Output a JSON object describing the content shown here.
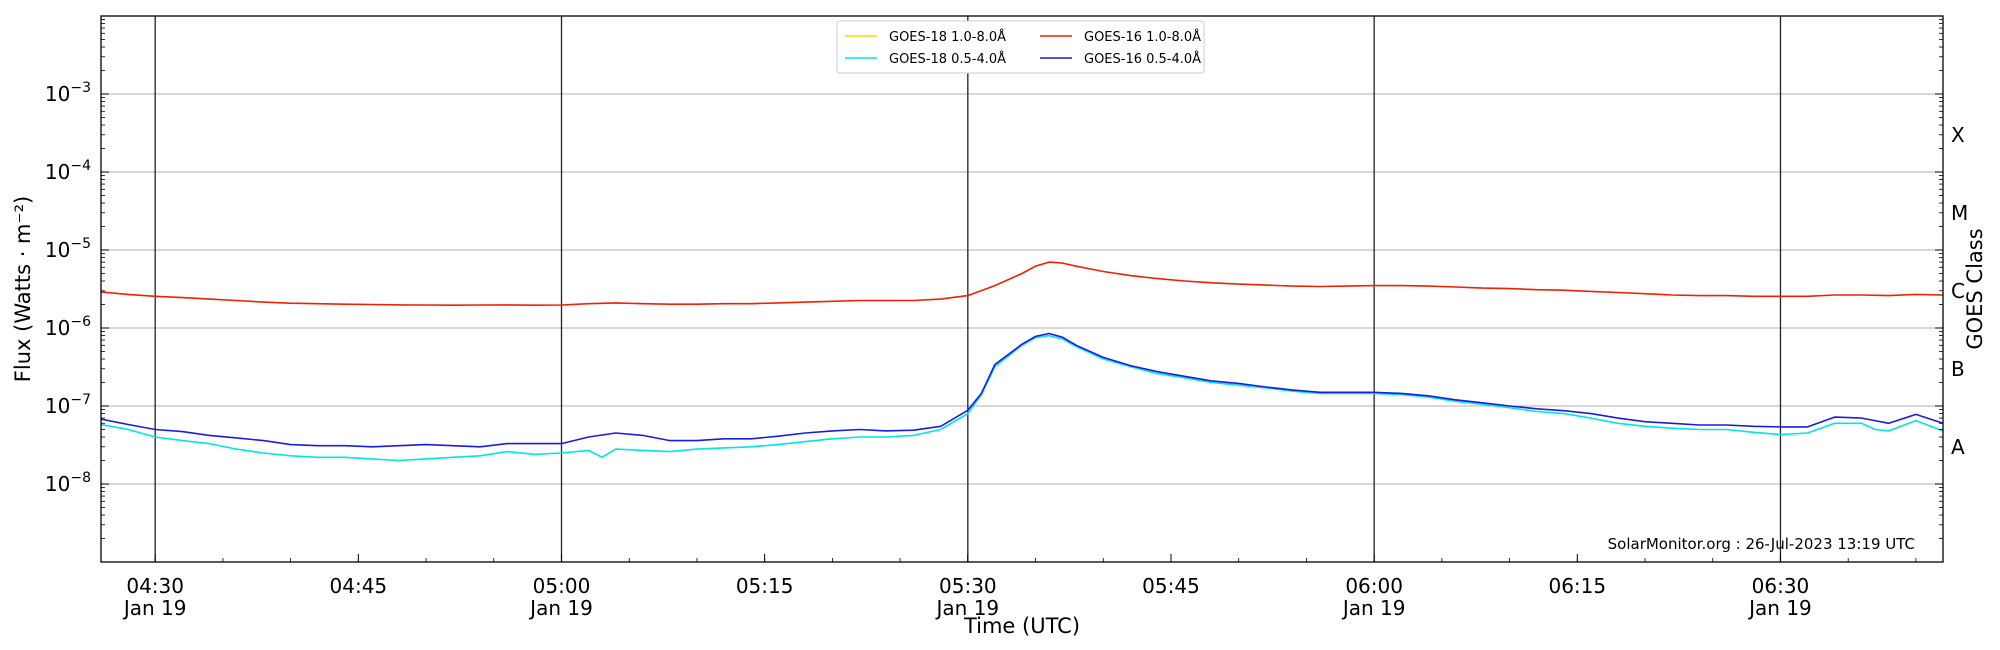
{
  "chart_data": {
    "type": "line",
    "xlabel": "Time (UTC)",
    "ylabel": "Flux (Watts · m⁻²)",
    "right_axis_label": "GOES Class",
    "y_scale": "log",
    "xlim": [
      "04:26",
      "06:42"
    ],
    "ylim": [
      1e-09,
      0.01
    ],
    "grid": "horizontal at decades",
    "legend_position": "top-center",
    "x_ticks": [
      {
        "t": "04:30",
        "line1": "04:30",
        "line2": "Jan 19",
        "major": true
      },
      {
        "t": "04:45",
        "line1": "04:45",
        "line2": "",
        "major": false
      },
      {
        "t": "05:00",
        "line1": "05:00",
        "line2": "Jan 19",
        "major": true
      },
      {
        "t": "05:15",
        "line1": "05:15",
        "line2": "",
        "major": false
      },
      {
        "t": "05:30",
        "line1": "05:30",
        "line2": "Jan 19",
        "major": true
      },
      {
        "t": "05:45",
        "line1": "05:45",
        "line2": "",
        "major": false
      },
      {
        "t": "06:00",
        "line1": "06:00",
        "line2": "Jan 19",
        "major": true
      },
      {
        "t": "06:15",
        "line1": "06:15",
        "line2": "",
        "major": false
      },
      {
        "t": "06:30",
        "line1": "06:30",
        "line2": "Jan 19",
        "major": true
      }
    ],
    "y_ticks": [
      {
        "value": 1e-08,
        "base": "10",
        "exp": "−8"
      },
      {
        "value": 1e-07,
        "base": "10",
        "exp": "−7"
      },
      {
        "value": 1e-06,
        "base": "10",
        "exp": "−6"
      },
      {
        "value": 1e-05,
        "base": "10",
        "exp": "−5"
      },
      {
        "value": 0.0001,
        "base": "10",
        "exp": "−4"
      },
      {
        "value": 0.001,
        "base": "10",
        "exp": "−3"
      }
    ],
    "goes_classes": [
      {
        "label": "X",
        "value": 0.0003
      },
      {
        "label": "M",
        "value": 3e-05
      },
      {
        "label": "C",
        "value": 3e-06
      },
      {
        "label": "B",
        "value": 3e-07
      },
      {
        "label": "A",
        "value": 3e-08
      }
    ],
    "series": [
      {
        "name": "GOES-18 1.0-8.0Å",
        "color": "#ffd700",
        "points": []
      },
      {
        "name": "GOES-18 0.5-4.0Å",
        "color": "#00e5e5",
        "points": [
          [
            "04:26",
            5.8e-08
          ],
          [
            "04:28",
            5e-08
          ],
          [
            "04:30",
            4e-08
          ],
          [
            "04:32",
            3.6e-08
          ],
          [
            "04:34",
            3.3e-08
          ],
          [
            "04:36",
            2.8e-08
          ],
          [
            "04:38",
            2.5e-08
          ],
          [
            "04:40",
            2.3e-08
          ],
          [
            "04:42",
            2.2e-08
          ],
          [
            "04:44",
            2.2e-08
          ],
          [
            "04:46",
            2.1e-08
          ],
          [
            "04:48",
            2e-08
          ],
          [
            "04:50",
            2.1e-08
          ],
          [
            "04:52",
            2.2e-08
          ],
          [
            "04:54",
            2.3e-08
          ],
          [
            "04:56",
            2.6e-08
          ],
          [
            "04:58",
            2.4e-08
          ],
          [
            "05:00",
            2.5e-08
          ],
          [
            "05:02",
            2.7e-08
          ],
          [
            "05:03",
            2.2e-08
          ],
          [
            "05:04",
            2.8e-08
          ],
          [
            "05:06",
            2.7e-08
          ],
          [
            "05:08",
            2.6e-08
          ],
          [
            "05:10",
            2.8e-08
          ],
          [
            "05:12",
            2.9e-08
          ],
          [
            "05:14",
            3e-08
          ],
          [
            "05:16",
            3.2e-08
          ],
          [
            "05:18",
            3.5e-08
          ],
          [
            "05:20",
            3.8e-08
          ],
          [
            "05:22",
            4e-08
          ],
          [
            "05:24",
            4e-08
          ],
          [
            "05:26",
            4.2e-08
          ],
          [
            "05:28",
            5e-08
          ],
          [
            "05:30",
            8e-08
          ],
          [
            "05:31",
            1.4e-07
          ],
          [
            "05:32",
            3.2e-07
          ],
          [
            "05:34",
            6e-07
          ],
          [
            "05:35",
            7.5e-07
          ],
          [
            "05:36",
            8e-07
          ],
          [
            "05:37",
            7.2e-07
          ],
          [
            "05:38",
            5.8e-07
          ],
          [
            "05:40",
            4e-07
          ],
          [
            "05:42",
            3.2e-07
          ],
          [
            "05:44",
            2.6e-07
          ],
          [
            "05:46",
            2.3e-07
          ],
          [
            "05:48",
            2e-07
          ],
          [
            "05:50",
            1.85e-07
          ],
          [
            "05:52",
            1.7e-07
          ],
          [
            "05:54",
            1.55e-07
          ],
          [
            "05:56",
            1.45e-07
          ],
          [
            "05:58",
            1.45e-07
          ],
          [
            "06:00",
            1.45e-07
          ],
          [
            "06:02",
            1.4e-07
          ],
          [
            "06:04",
            1.3e-07
          ],
          [
            "06:06",
            1.15e-07
          ],
          [
            "06:08",
            1.05e-07
          ],
          [
            "06:10",
            9.5e-08
          ],
          [
            "06:12",
            8.5e-08
          ],
          [
            "06:14",
            8e-08
          ],
          [
            "06:16",
            7e-08
          ],
          [
            "06:18",
            6e-08
          ],
          [
            "06:20",
            5.5e-08
          ],
          [
            "06:22",
            5.2e-08
          ],
          [
            "06:24",
            5e-08
          ],
          [
            "06:26",
            5e-08
          ],
          [
            "06:28",
            4.6e-08
          ],
          [
            "06:30",
            4.3e-08
          ],
          [
            "06:32",
            4.5e-08
          ],
          [
            "06:34",
            6e-08
          ],
          [
            "06:36",
            6e-08
          ],
          [
            "06:37",
            5e-08
          ],
          [
            "06:38",
            4.8e-08
          ],
          [
            "06:40",
            6.5e-08
          ],
          [
            "06:42",
            4.8e-08
          ]
        ]
      },
      {
        "name": "GOES-16 1.0-8.0Å",
        "color": "#ee2200",
        "points": [
          [
            "04:26",
            2.9e-06
          ],
          [
            "04:28",
            2.7e-06
          ],
          [
            "04:30",
            2.55e-06
          ],
          [
            "04:32",
            2.45e-06
          ],
          [
            "04:34",
            2.35e-06
          ],
          [
            "04:36",
            2.25e-06
          ],
          [
            "04:38",
            2.15e-06
          ],
          [
            "04:40",
            2.08e-06
          ],
          [
            "04:42",
            2.05e-06
          ],
          [
            "04:44",
            2.02e-06
          ],
          [
            "04:46",
            2e-06
          ],
          [
            "04:48",
            1.98e-06
          ],
          [
            "04:50",
            1.97e-06
          ],
          [
            "04:52",
            1.96e-06
          ],
          [
            "04:54",
            1.97e-06
          ],
          [
            "04:56",
            1.98e-06
          ],
          [
            "04:58",
            1.96e-06
          ],
          [
            "05:00",
            1.97e-06
          ],
          [
            "05:02",
            2.05e-06
          ],
          [
            "05:04",
            2.1e-06
          ],
          [
            "05:06",
            2.05e-06
          ],
          [
            "05:08",
            2.02e-06
          ],
          [
            "05:10",
            2.02e-06
          ],
          [
            "05:12",
            2.05e-06
          ],
          [
            "05:14",
            2.05e-06
          ],
          [
            "05:16",
            2.1e-06
          ],
          [
            "05:18",
            2.15e-06
          ],
          [
            "05:20",
            2.2e-06
          ],
          [
            "05:22",
            2.25e-06
          ],
          [
            "05:24",
            2.25e-06
          ],
          [
            "05:26",
            2.25e-06
          ],
          [
            "05:28",
            2.35e-06
          ],
          [
            "05:30",
            2.6e-06
          ],
          [
            "05:32",
            3.5e-06
          ],
          [
            "05:34",
            5e-06
          ],
          [
            "05:35",
            6.2e-06
          ],
          [
            "05:36",
            7e-06
          ],
          [
            "05:37",
            6.8e-06
          ],
          [
            "05:38",
            6.2e-06
          ],
          [
            "05:40",
            5.3e-06
          ],
          [
            "05:42",
            4.7e-06
          ],
          [
            "05:44",
            4.3e-06
          ],
          [
            "05:46",
            4e-06
          ],
          [
            "05:48",
            3.8e-06
          ],
          [
            "05:50",
            3.65e-06
          ],
          [
            "05:52",
            3.55e-06
          ],
          [
            "05:54",
            3.45e-06
          ],
          [
            "05:56",
            3.4e-06
          ],
          [
            "05:58",
            3.45e-06
          ],
          [
            "06:00",
            3.5e-06
          ],
          [
            "06:02",
            3.5e-06
          ],
          [
            "06:04",
            3.45e-06
          ],
          [
            "06:06",
            3.35e-06
          ],
          [
            "06:08",
            3.25e-06
          ],
          [
            "06:10",
            3.2e-06
          ],
          [
            "06:12",
            3.1e-06
          ],
          [
            "06:14",
            3.05e-06
          ],
          [
            "06:16",
            2.95e-06
          ],
          [
            "06:18",
            2.85e-06
          ],
          [
            "06:20",
            2.75e-06
          ],
          [
            "06:22",
            2.65e-06
          ],
          [
            "06:24",
            2.6e-06
          ],
          [
            "06:26",
            2.6e-06
          ],
          [
            "06:28",
            2.55e-06
          ],
          [
            "06:30",
            2.55e-06
          ],
          [
            "06:32",
            2.55e-06
          ],
          [
            "06:34",
            2.65e-06
          ],
          [
            "06:36",
            2.65e-06
          ],
          [
            "06:38",
            2.6e-06
          ],
          [
            "06:40",
            2.7e-06
          ],
          [
            "06:42",
            2.65e-06
          ]
        ]
      },
      {
        "name": "GOES-16 0.5-4.0Å",
        "color": "#1c1ce0",
        "points": [
          [
            "04:26",
            6.8e-08
          ],
          [
            "04:28",
            5.8e-08
          ],
          [
            "04:30",
            5e-08
          ],
          [
            "04:32",
            4.7e-08
          ],
          [
            "04:34",
            4.2e-08
          ],
          [
            "04:36",
            3.9e-08
          ],
          [
            "04:38",
            3.6e-08
          ],
          [
            "04:40",
            3.2e-08
          ],
          [
            "04:42",
            3.1e-08
          ],
          [
            "04:44",
            3.1e-08
          ],
          [
            "04:46",
            3e-08
          ],
          [
            "04:48",
            3.1e-08
          ],
          [
            "04:50",
            3.2e-08
          ],
          [
            "04:52",
            3.1e-08
          ],
          [
            "04:54",
            3e-08
          ],
          [
            "04:56",
            3.3e-08
          ],
          [
            "04:58",
            3.3e-08
          ],
          [
            "05:00",
            3.3e-08
          ],
          [
            "05:02",
            4e-08
          ],
          [
            "05:04",
            4.5e-08
          ],
          [
            "05:06",
            4.2e-08
          ],
          [
            "05:08",
            3.6e-08
          ],
          [
            "05:10",
            3.6e-08
          ],
          [
            "05:12",
            3.8e-08
          ],
          [
            "05:14",
            3.8e-08
          ],
          [
            "05:16",
            4.1e-08
          ],
          [
            "05:18",
            4.5e-08
          ],
          [
            "05:20",
            4.8e-08
          ],
          [
            "05:22",
            5e-08
          ],
          [
            "05:24",
            4.8e-08
          ],
          [
            "05:26",
            4.9e-08
          ],
          [
            "05:28",
            5.5e-08
          ],
          [
            "05:30",
            8.8e-08
          ],
          [
            "05:31",
            1.45e-07
          ],
          [
            "05:32",
            3.4e-07
          ],
          [
            "05:34",
            6.2e-07
          ],
          [
            "05:35",
            7.8e-07
          ],
          [
            "05:36",
            8.5e-07
          ],
          [
            "05:37",
            7.6e-07
          ],
          [
            "05:38",
            6e-07
          ],
          [
            "05:40",
            4.2e-07
          ],
          [
            "05:42",
            3.3e-07
          ],
          [
            "05:44",
            2.75e-07
          ],
          [
            "05:46",
            2.4e-07
          ],
          [
            "05:48",
            2.1e-07
          ],
          [
            "05:50",
            1.95e-07
          ],
          [
            "05:52",
            1.75e-07
          ],
          [
            "05:54",
            1.6e-07
          ],
          [
            "05:56",
            1.5e-07
          ],
          [
            "05:58",
            1.5e-07
          ],
          [
            "06:00",
            1.5e-07
          ],
          [
            "06:02",
            1.45e-07
          ],
          [
            "06:04",
            1.35e-07
          ],
          [
            "06:06",
            1.2e-07
          ],
          [
            "06:08",
            1.1e-07
          ],
          [
            "06:10",
            1e-07
          ],
          [
            "06:12",
            9.2e-08
          ],
          [
            "06:14",
            8.7e-08
          ],
          [
            "06:16",
            8e-08
          ],
          [
            "06:18",
            7e-08
          ],
          [
            "06:20",
            6.3e-08
          ],
          [
            "06:22",
            6e-08
          ],
          [
            "06:24",
            5.7e-08
          ],
          [
            "06:26",
            5.7e-08
          ],
          [
            "06:28",
            5.5e-08
          ],
          [
            "06:30",
            5.4e-08
          ],
          [
            "06:32",
            5.4e-08
          ],
          [
            "06:34",
            7.2e-08
          ],
          [
            "06:36",
            7e-08
          ],
          [
            "06:38",
            6e-08
          ],
          [
            "06:40",
            7.8e-08
          ],
          [
            "06:42",
            6e-08
          ]
        ]
      }
    ],
    "legend": [
      {
        "label": "GOES-18 1.0-8.0Å",
        "color": "#ffd700"
      },
      {
        "label": "GOES-18 0.5-4.0Å",
        "color": "#00e5e5"
      },
      {
        "label": "GOES-16 1.0-8.0Å",
        "color": "#ee2200"
      },
      {
        "label": "GOES-16 0.5-4.0Å",
        "color": "#1c1ce0"
      }
    ],
    "watermark": "SolarMonitor.org : 26-Jul-2023 13:19 UTC"
  }
}
